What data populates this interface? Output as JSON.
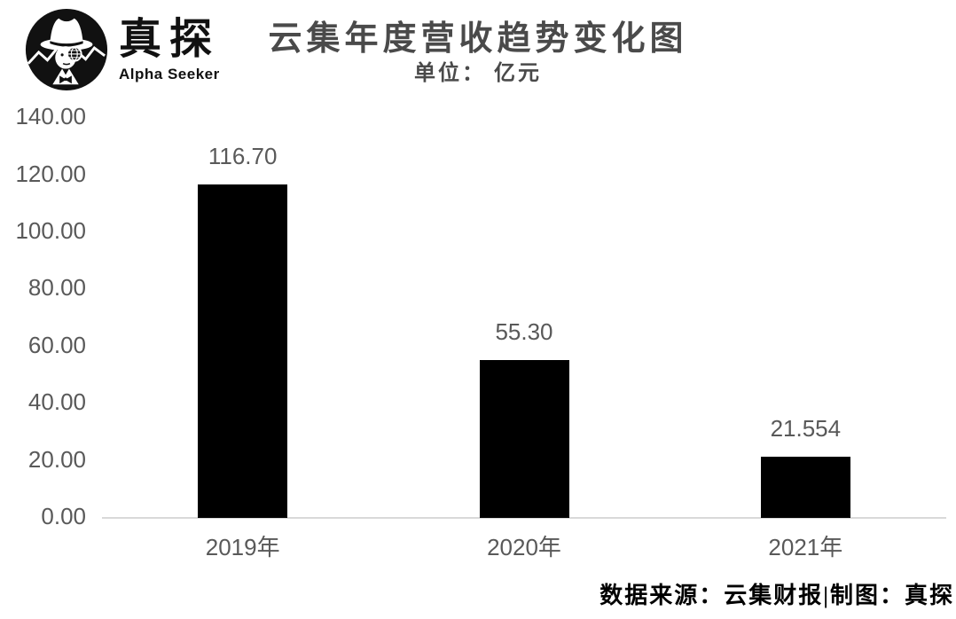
{
  "logo": {
    "brand": "真探",
    "tagline": "Alpha Seeker"
  },
  "footer": {
    "credit": "数据来源：云集财报|制图：真探"
  },
  "colors": {
    "bar": "#000000",
    "axis_line": "#d9d9d9",
    "tick_label": "#595959",
    "title": "#4a4a4a",
    "footer_text": "#000000",
    "background": "#ffffff"
  },
  "chart_data": {
    "type": "bar",
    "title": "云集年度营收趋势变化图",
    "subtitle": "单位： 亿元",
    "unit": "亿元",
    "categories": [
      "2019年",
      "2020年",
      "2021年"
    ],
    "values": [
      116.7,
      55.3,
      21.554
    ],
    "value_labels": [
      "116.70",
      "55.30",
      "21.554"
    ],
    "xlabel": "",
    "ylabel": "",
    "ylim": [
      0,
      140
    ],
    "ytick_step": 20,
    "ytick_labels": [
      "0.00",
      "20.00",
      "40.00",
      "60.00",
      "80.00",
      "100.00",
      "120.00",
      "140.00"
    ],
    "bar_color": "#000000",
    "grid": false,
    "legend_position": "none"
  }
}
